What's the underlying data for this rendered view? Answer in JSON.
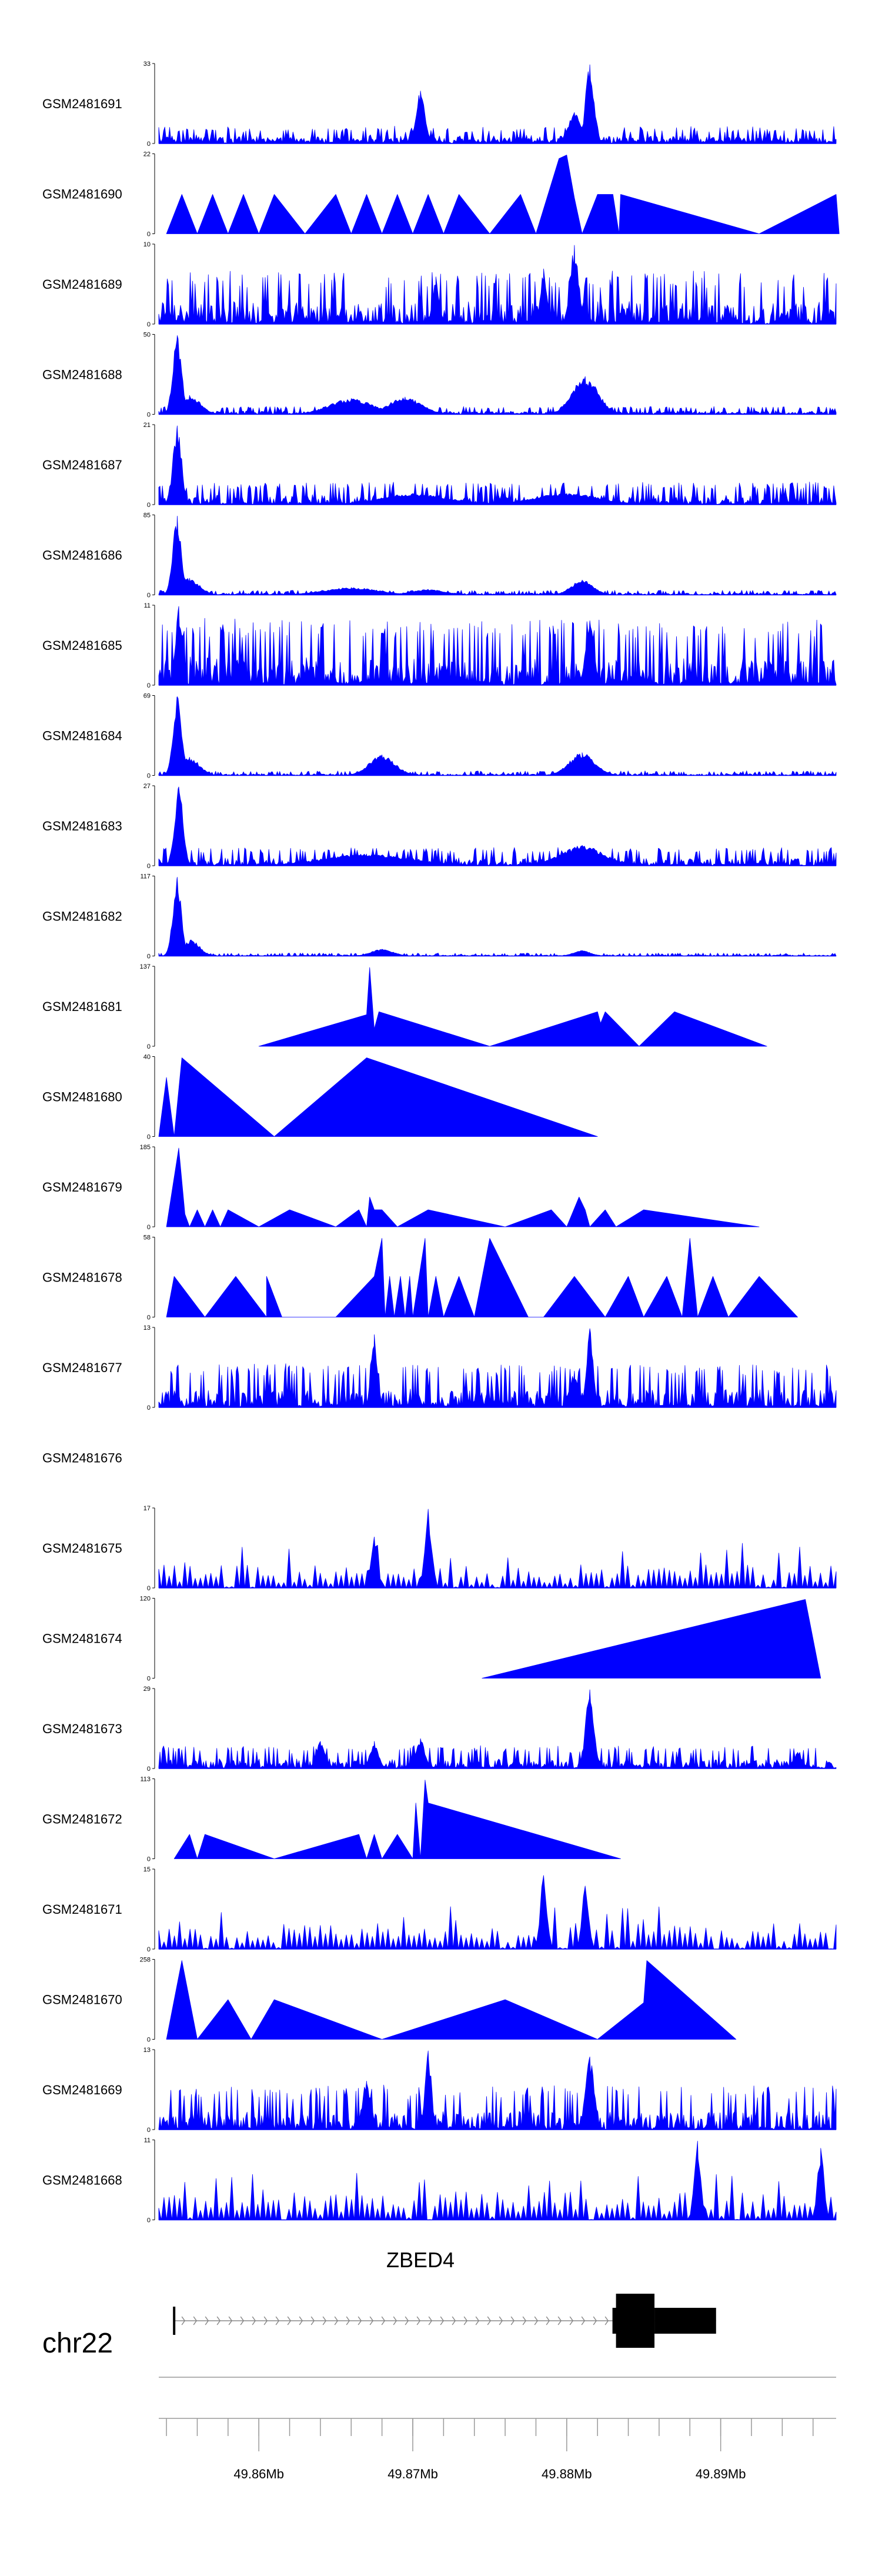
{
  "chart_data": {
    "type": "area",
    "title": "",
    "colors": {
      "fill": "#0000ff",
      "axis": "#000000",
      "gene": "#000000",
      "intron": "#888888"
    },
    "genome_axis": {
      "chromosome": "chr22",
      "range_mb": [
        49.8535,
        49.8975
      ],
      "ticks_mb": [
        49.86,
        49.87,
        49.88,
        49.89
      ],
      "tick_labels": [
        "49.86Mb",
        "49.87Mb",
        "49.88Mb",
        "49.89Mb"
      ],
      "minor_tick_step_mb": 0.002
    },
    "gene": {
      "name": "ZBED4",
      "strand": "+",
      "tx_start_mb": 49.8545,
      "tx_end_mb": 49.8897,
      "first_exon_mb": [
        49.8545,
        49.8547
      ],
      "utr_mb": [
        49.8857,
        49.8897
      ],
      "cds_mb": [
        49.8832,
        49.8857
      ]
    },
    "tracks": [
      {
        "name": "GSM2481691",
        "ymax": 33,
        "ymin": 0,
        "style": "dense",
        "seed": 11,
        "base": 0.09,
        "noise": 0.1,
        "peaks": [
          [
            49.8705,
            22,
            0.0004
          ],
          [
            49.8815,
            33,
            0.0004
          ],
          [
            49.8805,
            13,
            0.0006
          ]
        ]
      },
      {
        "name": "GSM2481690",
        "ymax": 22,
        "ymin": 0,
        "style": "tri",
        "seed": 12,
        "points": [
          [
            49.854,
            0
          ],
          [
            49.855,
            11
          ],
          [
            49.856,
            0
          ],
          [
            49.857,
            11
          ],
          [
            49.858,
            0
          ],
          [
            49.859,
            11
          ],
          [
            49.86,
            0
          ],
          [
            49.861,
            11
          ],
          [
            49.863,
            0
          ],
          [
            49.865,
            11
          ],
          [
            49.866,
            0
          ],
          [
            49.867,
            11
          ],
          [
            49.868,
            0
          ],
          [
            49.869,
            11
          ],
          [
            49.87,
            0
          ],
          [
            49.871,
            11
          ],
          [
            49.872,
            0
          ],
          [
            49.873,
            11
          ],
          [
            49.875,
            0
          ],
          [
            49.877,
            11
          ],
          [
            49.878,
            0
          ],
          [
            49.8795,
            21
          ],
          [
            49.88,
            22
          ],
          [
            49.8805,
            10
          ],
          [
            49.881,
            0
          ],
          [
            49.882,
            11
          ],
          [
            49.883,
            11
          ],
          [
            49.8834,
            0
          ],
          [
            49.8835,
            11
          ],
          [
            49.8925,
            0
          ],
          [
            49.8975,
            11
          ],
          [
            49.8977,
            0
          ]
        ]
      },
      {
        "name": "GSM2481689",
        "ymax": 10,
        "ymin": 0,
        "style": "dense",
        "seed": 13,
        "base": 0.1,
        "noise": 0.35,
        "peaks": [
          [
            49.8805,
            10,
            0.0004
          ],
          [
            49.8785,
            7,
            0.0003
          ],
          [
            49.8715,
            6,
            0.0003
          ]
        ]
      },
      {
        "name": "GSM2481688",
        "ymax": 50,
        "ymin": 0,
        "style": "dense",
        "seed": 14,
        "base": 0.03,
        "noise": 0.05,
        "peaks": [
          [
            49.8547,
            50,
            0.0004
          ],
          [
            49.8555,
            12,
            0.001
          ],
          [
            49.866,
            10,
            0.002
          ],
          [
            49.8695,
            11,
            0.0015
          ],
          [
            49.8812,
            24,
            0.0012
          ]
        ]
      },
      {
        "name": "GSM2481687",
        "ymax": 21,
        "ymin": 0,
        "style": "dense",
        "seed": 15,
        "base": 0.05,
        "noise": 0.15,
        "peaks": [
          [
            49.8547,
            21,
            0.0004
          ],
          [
            49.87,
            3,
            0.003
          ],
          [
            49.88,
            3,
            0.003
          ]
        ]
      },
      {
        "name": "GSM2481686",
        "ymax": 85,
        "ymin": 0,
        "style": "dense",
        "seed": 16,
        "base": 0.015,
        "noise": 0.03,
        "peaks": [
          [
            49.8547,
            85,
            0.0004
          ],
          [
            49.8555,
            18,
            0.0009
          ],
          [
            49.866,
            8,
            0.0025
          ],
          [
            49.871,
            6,
            0.0015
          ],
          [
            49.881,
            16,
            0.001
          ]
        ]
      },
      {
        "name": "GSM2481685",
        "ymax": 11,
        "ymin": 0,
        "style": "dense",
        "seed": 17,
        "base": 0.1,
        "noise": 0.45,
        "peaks": [
          [
            49.8548,
            11,
            0.0003
          ],
          [
            49.8815,
            9,
            0.0004
          ]
        ]
      },
      {
        "name": "GSM2481684",
        "ymax": 69,
        "ymin": 0,
        "style": "dense",
        "seed": 18,
        "base": 0.01,
        "noise": 0.03,
        "peaks": [
          [
            49.8547,
            69,
            0.0004
          ],
          [
            49.8555,
            16,
            0.0009
          ],
          [
            49.868,
            18,
            0.0012
          ],
          [
            49.881,
            20,
            0.0012
          ]
        ]
      },
      {
        "name": "GSM2481683",
        "ymax": 27,
        "ymin": 0,
        "style": "dense",
        "seed": 19,
        "base": 0.04,
        "noise": 0.12,
        "peaks": [
          [
            49.8548,
            27,
            0.0004
          ],
          [
            49.867,
            4,
            0.004
          ],
          [
            49.881,
            7,
            0.002
          ]
        ]
      },
      {
        "name": "GSM2481682",
        "ymax": 117,
        "ymin": 0,
        "style": "dense",
        "seed": 20,
        "base": 0.005,
        "noise": 0.02,
        "peaks": [
          [
            49.8547,
            117,
            0.0004
          ],
          [
            49.8556,
            24,
            0.0008
          ],
          [
            49.868,
            10,
            0.001
          ],
          [
            49.881,
            8,
            0.0008
          ]
        ]
      },
      {
        "name": "GSM2481681",
        "ymax": 137,
        "ymin": 0,
        "style": "tri",
        "seed": 21,
        "points": [
          [
            49.86,
            0
          ],
          [
            49.867,
            55
          ],
          [
            49.8672,
            137
          ],
          [
            49.8675,
            30
          ],
          [
            49.8678,
            60
          ],
          [
            49.875,
            0
          ],
          [
            49.882,
            60
          ],
          [
            49.8822,
            40
          ],
          [
            49.8825,
            60
          ],
          [
            49.8847,
            0
          ],
          [
            49.887,
            60
          ],
          [
            49.893,
            0
          ]
        ]
      },
      {
        "name": "GSM2481680",
        "ymax": 40,
        "ymin": 0,
        "style": "tri",
        "seed": 22,
        "points": [
          [
            49.8535,
            0
          ],
          [
            49.854,
            30
          ],
          [
            49.8545,
            0
          ],
          [
            49.855,
            40
          ],
          [
            49.861,
            0
          ],
          [
            49.867,
            40
          ],
          [
            49.882,
            0
          ]
        ]
      },
      {
        "name": "GSM2481679",
        "ymax": 185,
        "ymin": 0,
        "style": "tri",
        "seed": 23,
        "points": [
          [
            49.854,
            0
          ],
          [
            49.8548,
            185
          ],
          [
            49.8552,
            30
          ],
          [
            49.8555,
            0
          ],
          [
            49.856,
            40
          ],
          [
            49.8565,
            0
          ],
          [
            49.857,
            40
          ],
          [
            49.8575,
            0
          ],
          [
            49.858,
            40
          ],
          [
            49.86,
            0
          ],
          [
            49.862,
            40
          ],
          [
            49.865,
            0
          ],
          [
            49.8665,
            40
          ],
          [
            49.867,
            0
          ],
          [
            49.8672,
            70
          ],
          [
            49.8675,
            40
          ],
          [
            49.868,
            40
          ],
          [
            49.869,
            0
          ],
          [
            49.871,
            40
          ],
          [
            49.876,
            0
          ],
          [
            49.879,
            40
          ],
          [
            49.88,
            0
          ],
          [
            49.8808,
            70
          ],
          [
            49.8812,
            40
          ],
          [
            49.8815,
            0
          ],
          [
            49.8825,
            40
          ],
          [
            49.8832,
            0
          ],
          [
            49.885,
            40
          ],
          [
            49.8925,
            0
          ]
        ]
      },
      {
        "name": "GSM2481678",
        "ymax": 58,
        "ymin": 0,
        "style": "tri",
        "seed": 24,
        "points": [
          [
            49.854,
            0
          ],
          [
            49.8545,
            30
          ],
          [
            49.8565,
            0
          ],
          [
            49.8585,
            30
          ],
          [
            49.8605,
            0
          ],
          [
            49.8605,
            30
          ],
          [
            49.8615,
            0
          ],
          [
            49.865,
            0
          ],
          [
            49.8675,
            30
          ],
          [
            49.868,
            58
          ],
          [
            49.8682,
            0
          ],
          [
            49.8685,
            30
          ],
          [
            49.8688,
            0
          ],
          [
            49.8692,
            30
          ],
          [
            49.8695,
            0
          ],
          [
            49.8698,
            30
          ],
          [
            49.87,
            0
          ],
          [
            49.8708,
            58
          ],
          [
            49.871,
            0
          ],
          [
            49.8715,
            30
          ],
          [
            49.872,
            0
          ],
          [
            49.873,
            30
          ],
          [
            49.874,
            0
          ],
          [
            49.875,
            58
          ],
          [
            49.8775,
            0
          ],
          [
            49.8785,
            0
          ],
          [
            49.8805,
            30
          ],
          [
            49.8825,
            0
          ],
          [
            49.884,
            30
          ],
          [
            49.885,
            0
          ],
          [
            49.8865,
            30
          ],
          [
            49.8875,
            0
          ],
          [
            49.888,
            58
          ],
          [
            49.8885,
            0
          ],
          [
            49.8895,
            30
          ],
          [
            49.8905,
            0
          ],
          [
            49.8925,
            30
          ],
          [
            49.895,
            0
          ]
        ]
      },
      {
        "name": "GSM2481677",
        "ymax": 13,
        "ymin": 0,
        "style": "dense",
        "seed": 25,
        "base": 0.06,
        "noise": 0.3,
        "peaks": [
          [
            49.8675,
            12,
            0.0003
          ],
          [
            49.8815,
            13,
            0.0003
          ],
          [
            49.8805,
            6,
            0.0004
          ]
        ]
      },
      {
        "name": "GSM2481676",
        "ymax": null,
        "ymin": null,
        "style": "empty"
      },
      {
        "name": "GSM2481675",
        "ymax": 17,
        "ymin": 0,
        "style": "spiky",
        "seed": 27,
        "base": 0.15,
        "noise": 0.25,
        "peaks": [
          [
            49.871,
            17,
            0.0003
          ],
          [
            49.8675,
            11,
            0.0003
          ]
        ]
      },
      {
        "name": "GSM2481674",
        "ymax": 120,
        "ymin": 0,
        "style": "tri",
        "seed": 28,
        "points": [
          [
            49.8745,
            0
          ],
          [
            49.8955,
            120
          ],
          [
            49.8965,
            0
          ]
        ]
      },
      {
        "name": "GSM2481673",
        "ymax": 29,
        "ymin": 0,
        "style": "dense",
        "seed": 29,
        "base": 0.05,
        "noise": 0.15,
        "peaks": [
          [
            49.8815,
            29,
            0.0004
          ],
          [
            49.864,
            10,
            0.0004
          ],
          [
            49.8675,
            10,
            0.0004
          ],
          [
            49.8705,
            11,
            0.0004
          ],
          [
            49.895,
            6,
            0.0004
          ]
        ]
      },
      {
        "name": "GSM2481672",
        "ymax": 113,
        "ymin": 0,
        "style": "tri",
        "seed": 30,
        "points": [
          [
            49.8545,
            0
          ],
          [
            49.8555,
            35
          ],
          [
            49.856,
            0
          ],
          [
            49.8565,
            35
          ],
          [
            49.861,
            0
          ],
          [
            49.8665,
            35
          ],
          [
            49.867,
            0
          ],
          [
            49.8675,
            35
          ],
          [
            49.868,
            0
          ],
          [
            49.869,
            35
          ],
          [
            49.87,
            0
          ],
          [
            49.8702,
            80
          ],
          [
            49.8705,
            0
          ],
          [
            49.8708,
            113
          ],
          [
            49.871,
            80
          ],
          [
            49.8835,
            0
          ]
        ]
      },
      {
        "name": "GSM2481671",
        "ymax": 15,
        "ymin": 0,
        "style": "spiky",
        "seed": 31,
        "base": 0.15,
        "noise": 0.3,
        "peaks": [
          [
            49.8785,
            14,
            0.0003
          ],
          [
            49.8812,
            12,
            0.0003
          ]
        ]
      },
      {
        "name": "GSM2481670",
        "ymax": 258,
        "ymin": 0,
        "style": "tri",
        "seed": 32,
        "points": [
          [
            49.854,
            0
          ],
          [
            49.855,
            258
          ],
          [
            49.856,
            0
          ],
          [
            49.858,
            130
          ],
          [
            49.8595,
            0
          ],
          [
            49.861,
            130
          ],
          [
            49.868,
            0
          ],
          [
            49.876,
            130
          ],
          [
            49.882,
            0
          ],
          [
            49.885,
            120
          ],
          [
            49.8852,
            258
          ],
          [
            49.891,
            0
          ]
        ]
      },
      {
        "name": "GSM2481669",
        "ymax": 13,
        "ymin": 0,
        "style": "dense",
        "seed": 33,
        "base": 0.07,
        "noise": 0.3,
        "peaks": [
          [
            49.871,
            13,
            0.0003
          ],
          [
            49.8815,
            12,
            0.0004
          ],
          [
            49.867,
            8,
            0.0004
          ]
        ]
      },
      {
        "name": "GSM2481668",
        "ymax": 11,
        "ymin": 0,
        "style": "spiky",
        "seed": 34,
        "base": 0.12,
        "noise": 0.4,
        "peaks": [
          [
            49.8885,
            11,
            0.0003
          ],
          [
            49.8965,
            10,
            0.0003
          ]
        ]
      }
    ]
  }
}
